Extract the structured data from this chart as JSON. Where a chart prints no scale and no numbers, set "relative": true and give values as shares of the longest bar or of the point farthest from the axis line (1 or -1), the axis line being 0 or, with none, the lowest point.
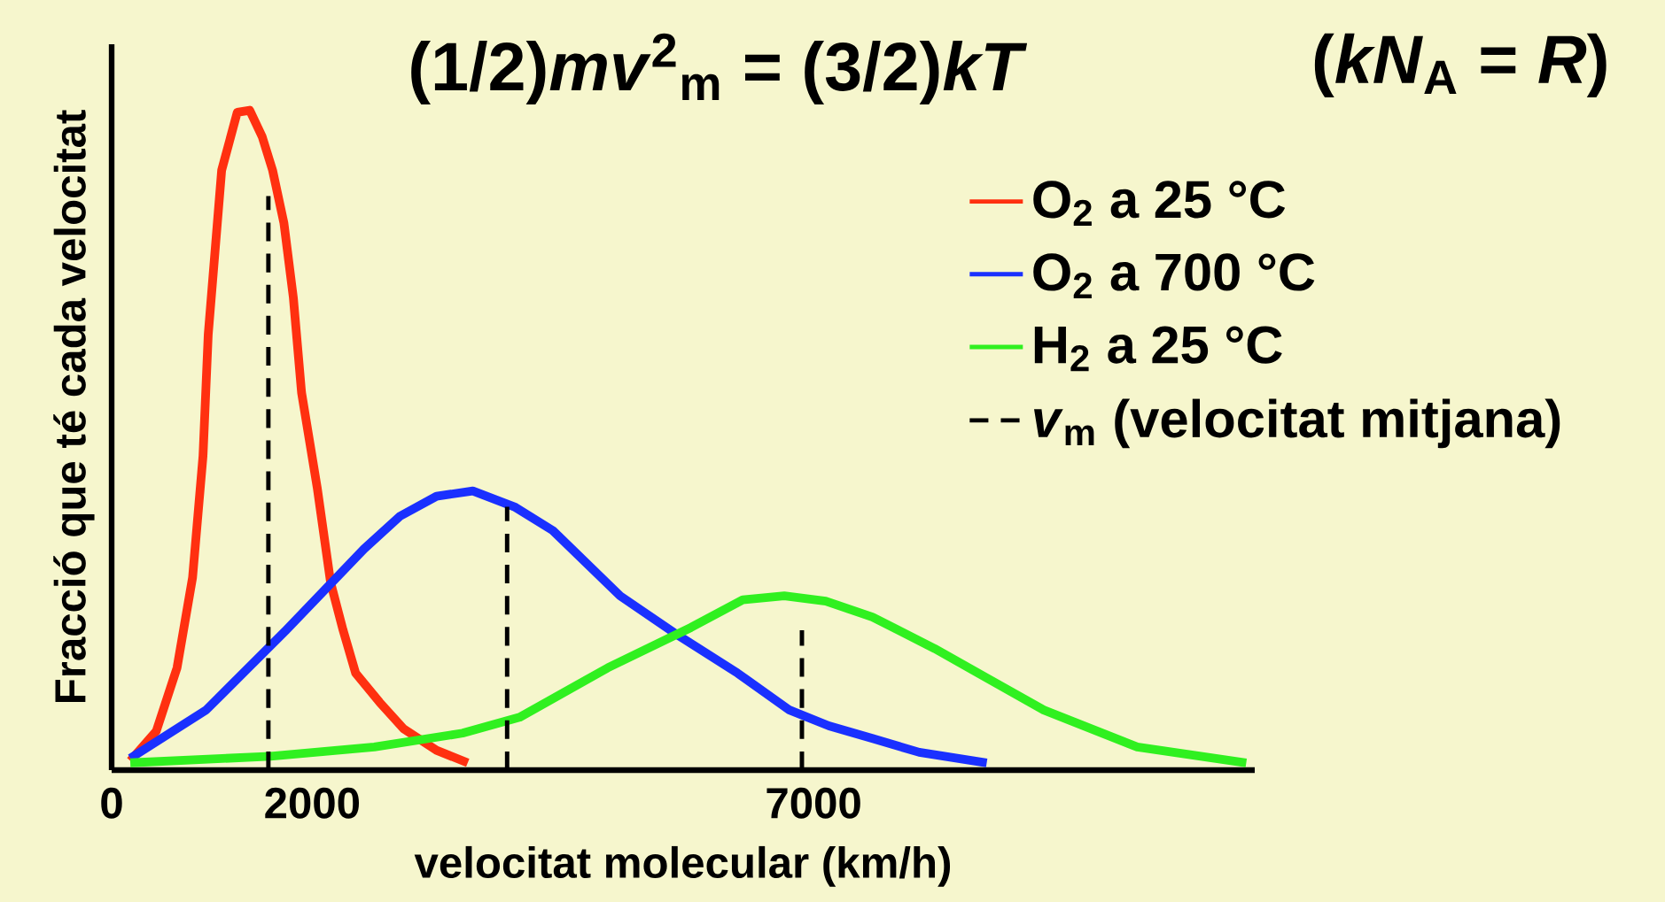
{
  "chart_data": {
    "type": "line",
    "title": "(1/2)*mv*$^{2}$$_{m}$ = (3/2)*kT*",
    "annotations": [
      "(*kN*$_{A}$ = *R*)"
    ],
    "xlabel": "velocitat molecular (km/h)",
    "ylabel": "Fracció que té cada velocitat",
    "relative": true,
    "xlim": [
      0,
      11400
    ],
    "xticks": [
      0,
      2000,
      7000
    ],
    "legend": "right",
    "series": [
      {
        "name": "O$_{2}$ a 25 °C",
        "color": "#ff3010",
        "x": [
          186,
          445,
          652,
          807,
          911,
          963,
          1097,
          1253,
          1377,
          1501,
          1605,
          1718,
          1812,
          1894,
          2050,
          2184,
          2308,
          2433,
          2671,
          2909,
          3240,
          3551
        ],
        "values": [
          0.014,
          0.059,
          0.155,
          0.292,
          0.476,
          0.66,
          0.909,
          0.997,
          1,
          0.96,
          0.909,
          0.829,
          0.716,
          0.572,
          0.428,
          0.284,
          0.212,
          0.147,
          0.103,
          0.063,
          0.03,
          0.011
        ]
      },
      {
        "name": "O$_{2}$ a 700 °C",
        "color": "#1a30ff",
        "x": [
          186,
          942,
          1739,
          2516,
          2878,
          3240,
          3602,
          4017,
          4400,
          5072,
          5621,
          6242,
          6760,
          7153,
          7588,
          8054,
          8727
        ],
        "values": [
          0.018,
          0.091,
          0.212,
          0.335,
          0.385,
          0.415,
          0.423,
          0.399,
          0.363,
          0.264,
          0.207,
          0.147,
          0.091,
          0.067,
          0.048,
          0.027,
          0.011
        ]
      },
      {
        "name": "H$_{2}$ a 25 °C",
        "color": "#30f020",
        "x": [
          186,
          1584,
          2619,
          3499,
          4068,
          4948,
          5776,
          6294,
          6708,
          7122,
          7588,
          8209,
          9296,
          10228,
          11315
        ],
        "values": [
          0.011,
          0.021,
          0.035,
          0.056,
          0.08,
          0.155,
          0.216,
          0.258,
          0.264,
          0.256,
          0.232,
          0.184,
          0.091,
          0.035,
          0.011
        ]
      },
      {
        "name": "*v*$_{m}$ (velocitat mitjana)",
        "color": "#000000",
        "line_style": "dashed",
        "x": [
          1563,
          1563,
          null,
          3944,
          3944,
          null,
          6884,
          6884
        ],
        "values": [
          0,
          0.87,
          null,
          0,
          0.399,
          null,
          0,
          0.212
        ]
      }
    ]
  }
}
